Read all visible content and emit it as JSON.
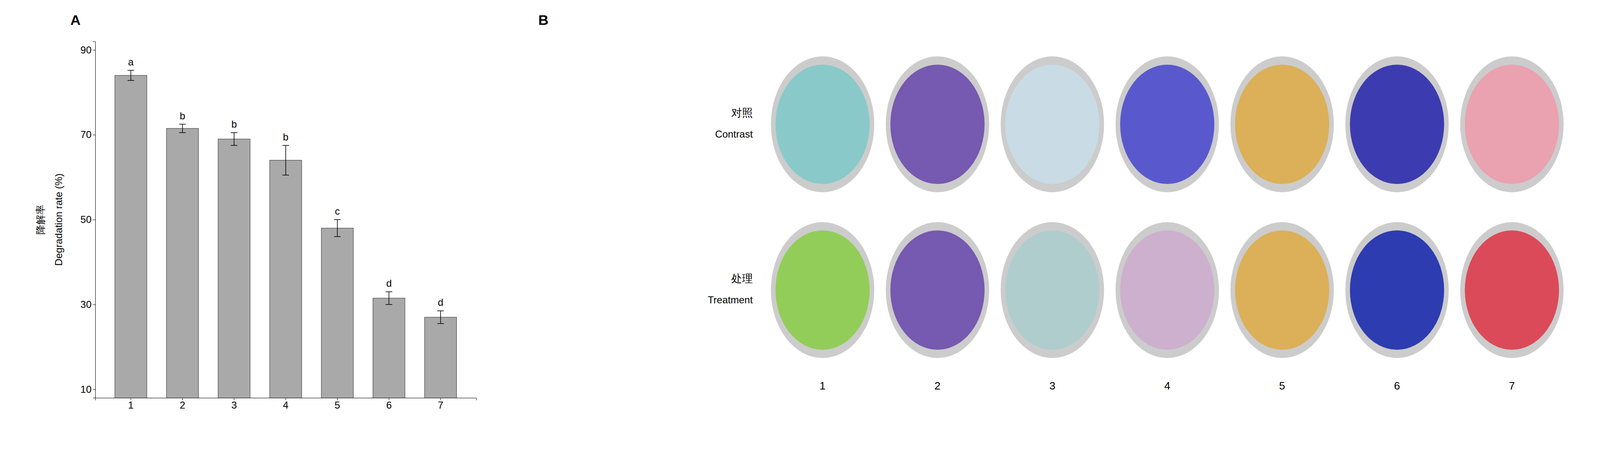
{
  "chart_data": [
    {
      "type": "bar",
      "title": "A",
      "categories": [
        "1",
        "2",
        "3",
        "4",
        "5",
        "6",
        "7"
      ],
      "values": [
        84.0,
        71.5,
        69.0,
        64.0,
        48.0,
        31.5,
        27.0
      ],
      "errors": [
        1.2,
        1.0,
        1.5,
        3.5,
        2.0,
        1.5,
        1.5
      ],
      "annotations": [
        "a",
        "b",
        "b",
        "b",
        "c",
        "d",
        "d"
      ],
      "color": "#a9a9a9",
      "ylabel": [
        "降解率",
        "Degradation rate (%)"
      ],
      "ylim": [
        8,
        92
      ],
      "yticks": [
        10,
        30,
        50,
        70,
        90
      ]
    },
    {
      "type": "swatch_grid",
      "title": "B",
      "categories": [
        "1",
        "2",
        "3",
        "4",
        "5",
        "6",
        "7"
      ],
      "series": [
        {
          "name": "对照",
          "label": "Contrast",
          "colors": [
            "#7ec8c8",
            "#6644aa",
            "#c8dde8",
            "#4444cc",
            "#ddaa44",
            "#2222aa",
            "#ee99aa"
          ]
        },
        {
          "name": "处理",
          "label": "Treatment",
          "colors": [
            "#88cc44",
            "#6644aa",
            "#aacccc",
            "#ccaacc",
            "#ddaa44",
            "#1122aa",
            "#dd3344"
          ]
        }
      ]
    }
  ]
}
